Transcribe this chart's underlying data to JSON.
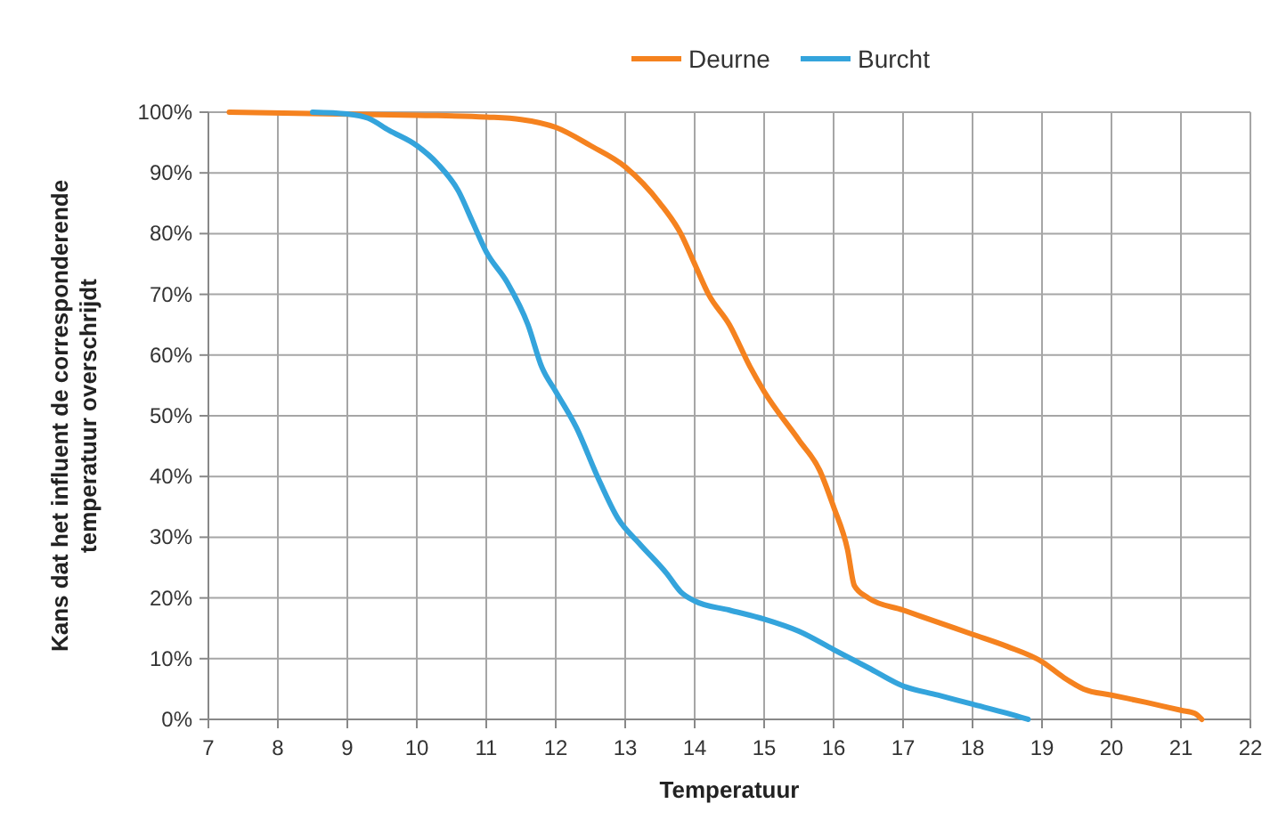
{
  "chart_data": {
    "type": "line",
    "xlabel": "Temperatuur",
    "ylabel": "Kans dat het influent de corresponderende temperatuur overschrijdt",
    "xlim": [
      7,
      22
    ],
    "xticks": [
      7,
      8,
      9,
      10,
      11,
      12,
      13,
      14,
      15,
      16,
      17,
      18,
      19,
      20,
      21,
      22
    ],
    "ylim": [
      0,
      100
    ],
    "yticks": [
      {
        "value": 0,
        "label": "0%"
      },
      {
        "value": 10,
        "label": "10%"
      },
      {
        "value": 20,
        "label": "20%"
      },
      {
        "value": 30,
        "label": "30%"
      },
      {
        "value": 40,
        "label": "40%"
      },
      {
        "value": 50,
        "label": "50%"
      },
      {
        "value": 60,
        "label": "60%"
      },
      {
        "value": 70,
        "label": "70%"
      },
      {
        "value": 80,
        "label": "80%"
      },
      {
        "value": 90,
        "label": "90%"
      },
      {
        "value": 100,
        "label": "100%"
      }
    ],
    "grid": true,
    "legend": "top",
    "marker": "none",
    "line_style": "solid",
    "series": [
      {
        "name": "Deurne",
        "color": "#f5821f",
        "x": [
          7.3,
          10,
          11,
          11.5,
          12,
          12.5,
          13,
          13.5,
          13.8,
          14,
          14.2,
          14.5,
          14.8,
          15,
          15.5,
          15.8,
          16,
          16.2,
          16.3,
          16.5,
          17,
          17.5,
          18,
          18.5,
          19,
          19.3,
          19.6,
          20,
          20.5,
          21,
          21.2,
          21.3
        ],
        "values": [
          100,
          99.5,
          99.2,
          98.8,
          97.5,
          94.5,
          91,
          85,
          80,
          75,
          70,
          65,
          58,
          54,
          46,
          41,
          35,
          28,
          22,
          20,
          18,
          16,
          14,
          12,
          9.5,
          7,
          5,
          4,
          2.8,
          1.5,
          1,
          0
        ]
      },
      {
        "name": "Burcht",
        "color": "#34a4dc",
        "x": [
          8.5,
          9,
          9.3,
          9.6,
          10,
          10.3,
          10.6,
          10.8,
          11,
          11.3,
          11.6,
          11.8,
          12,
          12.3,
          12.6,
          12.9,
          13.2,
          13.6,
          13.8,
          14,
          14.5,
          15,
          15.5,
          16,
          16.5,
          17,
          17.5,
          18,
          18.5,
          18.8
        ],
        "values": [
          100,
          99.7,
          99,
          97,
          94.5,
          91.5,
          87,
          82,
          77,
          72,
          65,
          58,
          54,
          48,
          40,
          33,
          29,
          24,
          21,
          19.5,
          18,
          16.5,
          14.5,
          11.5,
          8.5,
          5.5,
          4,
          2.5,
          1,
          0
        ]
      }
    ]
  }
}
